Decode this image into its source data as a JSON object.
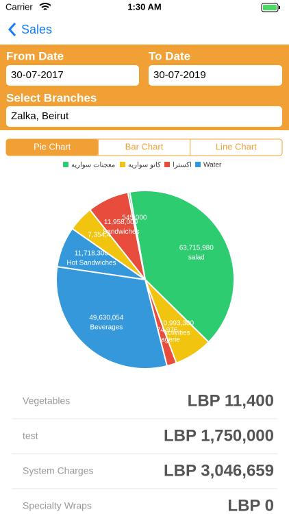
{
  "status_bar": {
    "carrier": "Carrier",
    "time": "1:30 AM"
  },
  "nav": {
    "back": "Sales"
  },
  "form": {
    "from_label": "From Date",
    "from_value": "30-07-2017",
    "to_label": "To Date",
    "to_value": "30-07-2019",
    "branches_label": "Select Branches",
    "branches_value": "Zalka, Beirut"
  },
  "tabs": [
    "Pie Chart",
    "Bar Chart",
    "Line Chart"
  ],
  "chart_data": {
    "type": "pie",
    "legend": [
      {
        "name": "معجنات سواريه",
        "color": "#2ecc71"
      },
      {
        "name": "كاتو سواريه",
        "color": "#f1c40f"
      },
      {
        "name": "اكسترا",
        "color": "#e74c3c"
      },
      {
        "name": "Water",
        "color": "#3498db"
      }
    ],
    "categories": [
      "salad",
      "Activities",
      "Fromagerie",
      "Beverages",
      "Hot Sandwiches",
      null,
      "Sandwiches",
      null
    ],
    "values": [
      63715980,
      10993300,
      2774976,
      49630054,
      11718300,
      7354487,
      11958000,
      545000
    ],
    "value_labels": [
      "63,715,980",
      "10,993,300",
      "2,774,976",
      "49,630,054",
      "11,718,300",
      "7,354,487",
      "11,958,000",
      "545,000"
    ],
    "colors": [
      "#2ecc71",
      "#f1c40f",
      "#e74c3c",
      "#3498db",
      "#3498db",
      "#f1c40f",
      "#e74c3c",
      "#2ecc71"
    ]
  },
  "list": [
    {
      "name": "Vegetables",
      "amount": "LBP 11,400"
    },
    {
      "name": "test",
      "amount": "LBP 1,750,000"
    },
    {
      "name": "System Charges",
      "amount": "LBP 3,046,659"
    },
    {
      "name": "Specialty Wraps",
      "amount": "LBP 0"
    }
  ]
}
